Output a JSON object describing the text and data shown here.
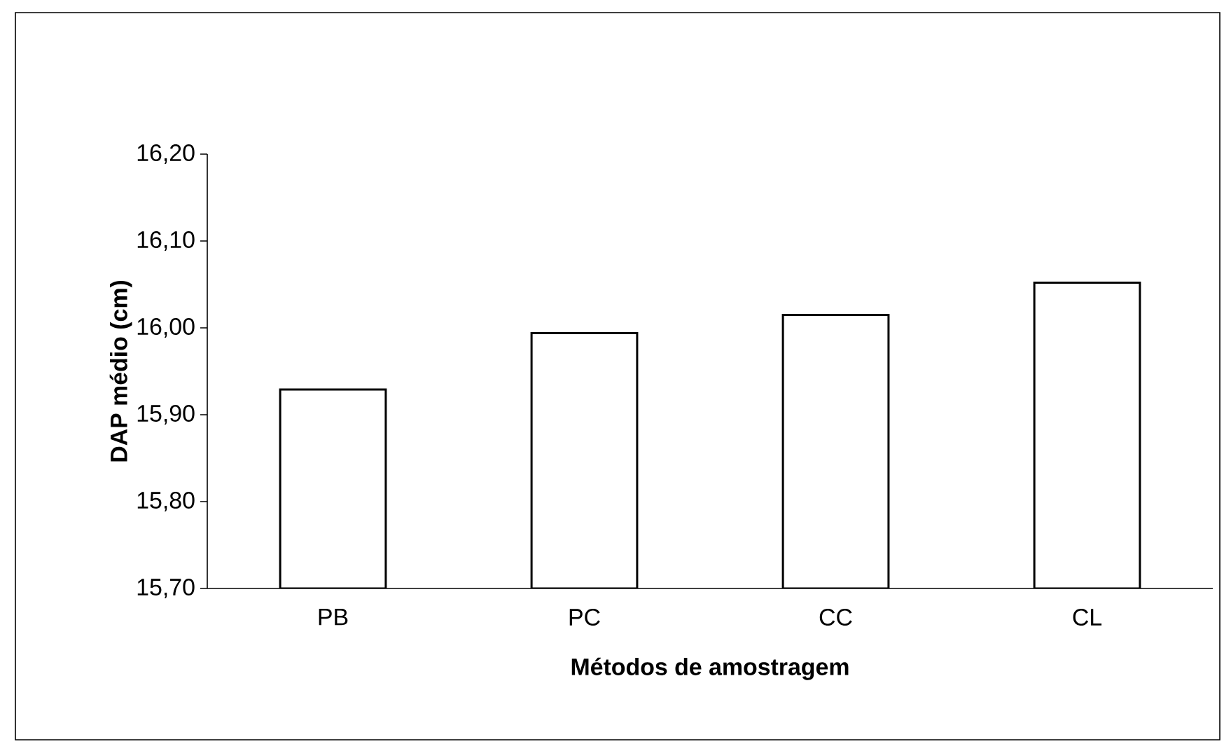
{
  "chart_data": {
    "type": "bar",
    "xlabel": "Métodos de amostragem",
    "ylabel": "DAP médio (cm)",
    "categories": [
      "PB",
      "PC",
      "CC",
      "CL"
    ],
    "values": [
      15.929,
      15.994,
      16.015,
      16.052
    ],
    "color": "#ffffff",
    "ylim": [
      15.7,
      16.2
    ],
    "yticks": [
      {
        "value": 15.7,
        "label": "15,70"
      },
      {
        "value": 15.8,
        "label": "15,80"
      },
      {
        "value": 15.9,
        "label": "15,90"
      },
      {
        "value": 16.0,
        "label": "16,00"
      },
      {
        "value": 16.1,
        "label": "16,10"
      },
      {
        "value": 16.2,
        "label": "16,20"
      }
    ],
    "grid": false
  }
}
